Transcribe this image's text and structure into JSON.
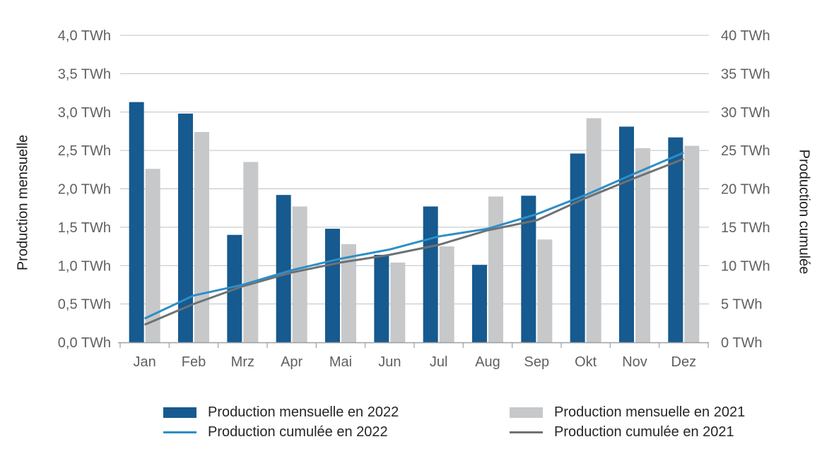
{
  "chart_data": {
    "type": "combo-bar-line",
    "title": "",
    "categories": [
      "Jan",
      "Feb",
      "Mrz",
      "Apr",
      "Mai",
      "Jun",
      "Jul",
      "Aug",
      "Sep",
      "Okt",
      "Nov",
      "Dez"
    ],
    "left_axis": {
      "title": "Production mensuelle",
      "unit": "TWh",
      "min": 0,
      "max": 4,
      "step": 0.5,
      "tick_labels_top_to_bottom": [
        "4,0 TWh",
        "3,5 TWh",
        "3,0 TWh",
        "2,5 TWh",
        "2,0 TWh",
        "1,5 TWh",
        "1,0 TWh",
        "0,5 TWh",
        "0,0 TWh"
      ]
    },
    "right_axis": {
      "title": "Production cumulée",
      "unit": "TWh",
      "min": 0,
      "max": 40,
      "step": 5,
      "tick_labels_top_to_bottom": [
        "40 TWh",
        "35 TWh",
        "30 TWh",
        "25 TWh",
        "20 TWh",
        "15 TWh",
        "10 TWh",
        "5 TWh",
        "0 TWh"
      ]
    },
    "series": [
      {
        "id": "bar-2022",
        "name": "Production mensuelle en 2022",
        "type": "bar",
        "axis": "left",
        "color": "#165A8F",
        "values": [
          3.13,
          2.98,
          1.4,
          1.92,
          1.48,
          1.14,
          1.77,
          1.01,
          1.91,
          2.46,
          2.81,
          2.67
        ]
      },
      {
        "id": "bar-2021",
        "name": "Production mensuelle en 2021",
        "type": "bar",
        "axis": "left",
        "color": "#C7C8C9",
        "values": [
          2.26,
          2.74,
          2.35,
          1.77,
          1.28,
          1.04,
          1.25,
          1.9,
          1.34,
          2.92,
          2.53,
          2.56
        ]
      },
      {
        "id": "line-2022",
        "name": "Production cumulée en 2022",
        "type": "line",
        "axis": "right",
        "color": "#2E8EC6",
        "values": [
          3.1,
          6.1,
          7.5,
          9.4,
          10.9,
          12.1,
          13.8,
          14.8,
          16.7,
          19.2,
          22.0,
          24.7
        ]
      },
      {
        "id": "line-2021",
        "name": "Production cumulée en 2021",
        "type": "line",
        "axis": "right",
        "color": "#6E7173",
        "values": [
          2.3,
          5.0,
          7.3,
          9.1,
          10.4,
          11.4,
          12.7,
          14.6,
          15.9,
          18.8,
          21.4,
          23.9
        ]
      }
    ],
    "grid": {
      "horizontal": true,
      "color": "#BFC0C1",
      "axis_color": "#9EA0A2"
    },
    "text_color": {
      "ticks": "#5E6163",
      "legend": "#262626"
    },
    "legend_position": "bottom"
  }
}
